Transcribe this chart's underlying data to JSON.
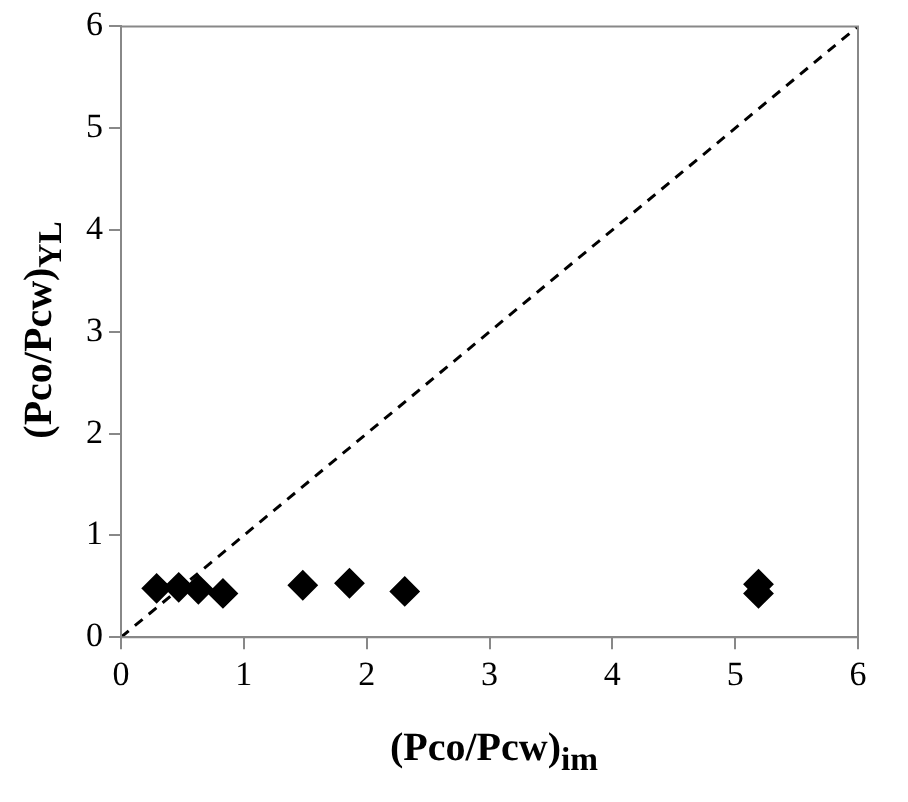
{
  "chart_data": {
    "type": "scatter",
    "xlabel": "(Pco/Pcw)$_{im}$",
    "ylabel": "(Pco/Pcw)$_{YL}$",
    "xlim": [
      0,
      6
    ],
    "ylim": [
      0,
      6
    ],
    "xticks": [
      0,
      1,
      2,
      3,
      4,
      5,
      6
    ],
    "yticks": [
      0,
      1,
      2,
      3,
      4,
      5,
      6
    ],
    "grid": false,
    "legend": false,
    "marker": "diamond",
    "series": [
      {
        "color": "#000000",
        "x": [
          0.29,
          0.47,
          0.63,
          0.83,
          1.48,
          1.86,
          2.31,
          5.19,
          5.19
        ],
        "values": [
          0.48,
          0.49,
          0.47,
          0.43,
          0.51,
          0.53,
          0.45,
          0.52,
          0.43
        ]
      },
      {
        "type": "line",
        "color": "#000000",
        "line_style": "dashed",
        "marker": "none",
        "x": [
          0,
          6
        ],
        "values": [
          0,
          6
        ]
      }
    ]
  }
}
